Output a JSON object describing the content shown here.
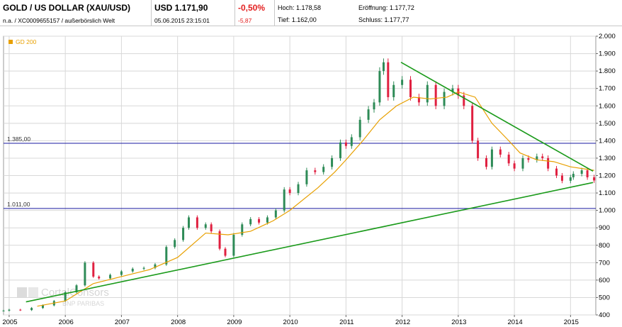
{
  "header": {
    "instrument_title": "GOLD / US DOLLAR (XAU/USD)",
    "instrument_sub": "n.a. / XC0009655157 / außerbörslich Welt",
    "price": "USD 1.171,90",
    "timestamp": "05.06.2015 23:15:01",
    "change_pct": "-0,50%",
    "change_abs": "-5,87",
    "high_label": "Hoch:",
    "high_value": "1.178,58",
    "open_label": "Eröffnung:",
    "open_value": "1.177,72",
    "low_label": "Tief:",
    "low_value": "1.162,00",
    "close_label": "Schluss:",
    "close_value": "1.177,77"
  },
  "watermark": {
    "line1": "CortalConsors",
    "line2": "BNP PARIBAS"
  },
  "colors": {
    "candle_up": "#2e8b57",
    "candle_down": "#e02040",
    "gd200": "#e8a000",
    "trendline": "#1a9a1a",
    "hline": "#1a1aa0",
    "grid": "#d8d8d8"
  },
  "chart_data": {
    "type": "line",
    "legend": [
      "GD 200"
    ],
    "legend_position": "top-left",
    "x_ticks": [
      "2005",
      "2006",
      "2007",
      "2008",
      "2009",
      "2010",
      "2011",
      "2012",
      "2013",
      "2014",
      "2015"
    ],
    "y_ticks": [
      "2.000",
      "1.900",
      "1.800",
      "1.700",
      "1.600",
      "1.500",
      "1.400",
      "1.300",
      "1.200",
      "1.100",
      "1.000",
      "900",
      "800",
      "700",
      "600",
      "500",
      "400"
    ],
    "ylim": [
      400,
      2000
    ],
    "xlim": [
      2004.9,
      2015.45
    ],
    "grid": true,
    "series": [
      {
        "name": "XAU/USD",
        "style": "candlestick",
        "x": [
          2004.9,
          2005.0,
          2005.2,
          2005.4,
          2005.6,
          2005.8,
          2006.0,
          2006.2,
          2006.35,
          2006.5,
          2006.6,
          2006.8,
          2007.0,
          2007.2,
          2007.4,
          2007.6,
          2007.8,
          2007.95,
          2008.1,
          2008.2,
          2008.35,
          2008.5,
          2008.6,
          2008.75,
          2008.85,
          2009.0,
          2009.15,
          2009.3,
          2009.45,
          2009.6,
          2009.75,
          2009.9,
          2010.0,
          2010.15,
          2010.3,
          2010.45,
          2010.6,
          2010.75,
          2010.9,
          2011.0,
          2011.1,
          2011.25,
          2011.4,
          2011.5,
          2011.6,
          2011.67,
          2011.75,
          2011.85,
          2012.0,
          2012.15,
          2012.3,
          2012.45,
          2012.6,
          2012.75,
          2012.9,
          2013.0,
          2013.1,
          2013.25,
          2013.35,
          2013.5,
          2013.6,
          2013.75,
          2013.9,
          2014.0,
          2014.15,
          2014.25,
          2014.4,
          2014.5,
          2014.6,
          2014.75,
          2014.85,
          2015.0,
          2015.05,
          2015.2,
          2015.3,
          2015.42
        ],
        "y": [
          425,
          430,
          428,
          440,
          455,
          480,
          530,
          570,
          700,
          620,
          610,
          630,
          650,
          665,
          670,
          690,
          790,
          830,
          900,
          960,
          900,
          920,
          880,
          780,
          740,
          860,
          920,
          950,
          930,
          960,
          1000,
          1120,
          1100,
          1150,
          1230,
          1220,
          1250,
          1300,
          1390,
          1370,
          1420,
          1520,
          1580,
          1620,
          1800,
          1850,
          1650,
          1720,
          1750,
          1650,
          1620,
          1720,
          1600,
          1680,
          1700,
          1660,
          1600,
          1400,
          1300,
          1250,
          1350,
          1320,
          1270,
          1240,
          1300,
          1290,
          1310,
          1300,
          1240,
          1200,
          1170,
          1190,
          1210,
          1230,
          1190,
          1172
        ]
      },
      {
        "name": "GD 200",
        "x": [
          2005.5,
          2006.0,
          2006.5,
          2007.0,
          2007.5,
          2008.0,
          2008.5,
          2008.9,
          2009.3,
          2009.7,
          2010.0,
          2010.5,
          2010.8,
          2011.0,
          2011.3,
          2011.6,
          2011.9,
          2012.2,
          2012.5,
          2012.8,
          2013.0,
          2013.3,
          2013.6,
          2013.9,
          2014.1,
          2014.4,
          2014.7,
          2015.0,
          2015.42
        ],
        "y": [
          450,
          480,
          580,
          620,
          660,
          730,
          870,
          860,
          880,
          940,
          1000,
          1130,
          1220,
          1290,
          1400,
          1520,
          1600,
          1650,
          1640,
          1650,
          1680,
          1650,
          1500,
          1400,
          1330,
          1290,
          1280,
          1250,
          1230
        ]
      },
      {
        "name": "Trendlinie 1",
        "x": [
          2005.3,
          2015.4
        ],
        "y": [
          475,
          1160
        ]
      },
      {
        "name": "Trendlinie 2",
        "x": [
          2011.98,
          2015.4
        ],
        "y": [
          1850,
          1225
        ]
      }
    ],
    "hlines": [
      {
        "value": 1385,
        "label": "1.385,00"
      },
      {
        "value": 1011,
        "label": "1.011,00"
      }
    ]
  }
}
